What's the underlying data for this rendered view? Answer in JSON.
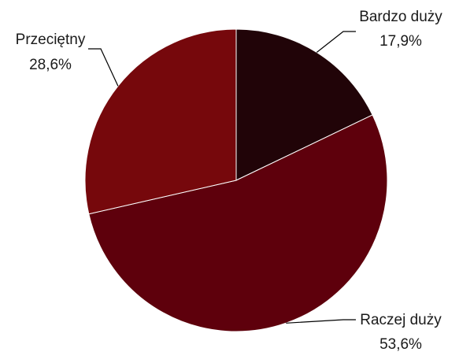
{
  "chart_data": {
    "type": "pie",
    "title": "",
    "slices": [
      {
        "name": "Bardzo duży",
        "value": 17.9,
        "label": "17,9%",
        "color": "#210408"
      },
      {
        "name": "Raczej duży",
        "value": 53.6,
        "label": "53,6%",
        "color": "#5e000c"
      },
      {
        "name": "Przeciętny",
        "value": 28.6,
        "label": "28,6%",
        "color": "#76080c"
      }
    ],
    "start": "12 o'clock",
    "direction": "clockwise",
    "legend": "none",
    "labels": "outside with leader lines"
  }
}
